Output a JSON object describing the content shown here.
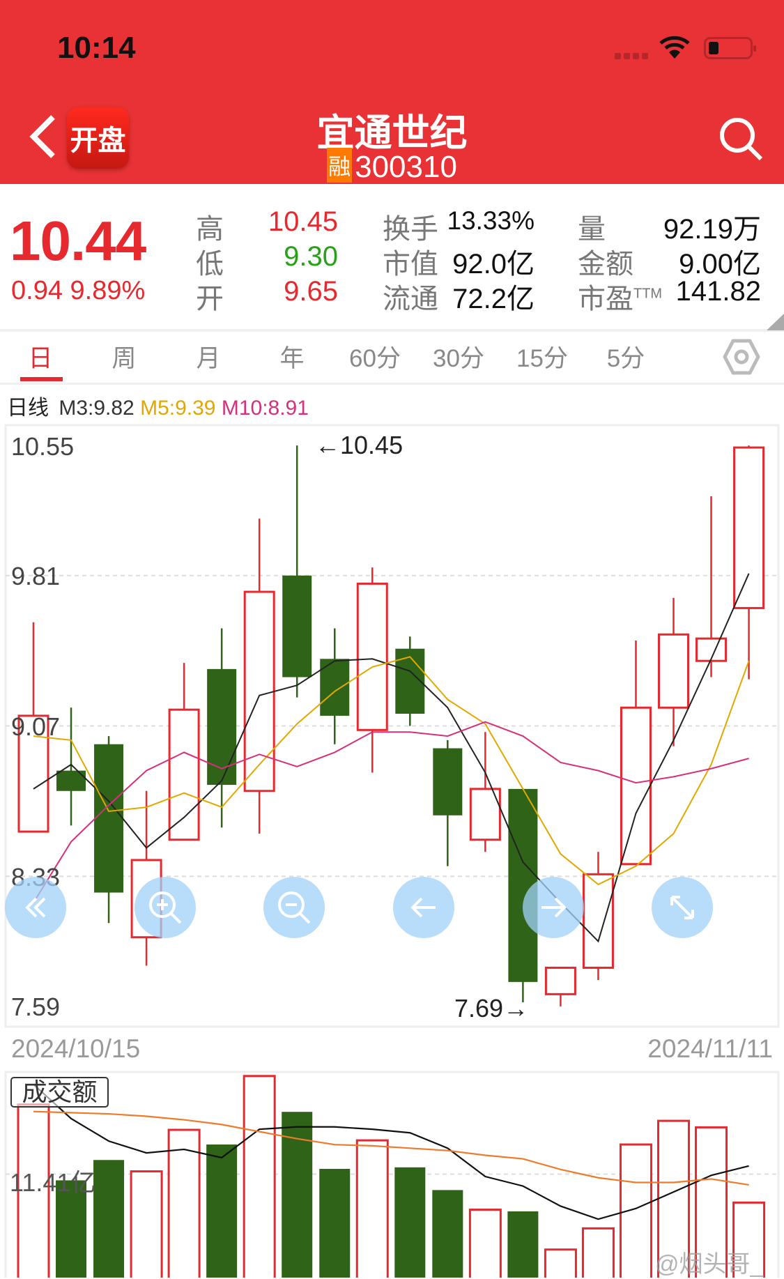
{
  "status_bar": {
    "time": "10:14"
  },
  "header": {
    "back_label": "开盘",
    "title": "宜通世纪",
    "badge": "融",
    "code": "300310"
  },
  "quote": {
    "price": "10.44",
    "change": "0.94",
    "change_pct": "9.89%",
    "high_label": "高",
    "high": "10.45",
    "low_label": "低",
    "low": "9.30",
    "open_label": "开",
    "open": "9.65",
    "turnover_label": "换手",
    "turnover": "13.33%",
    "mcap_label": "市值",
    "mcap": "92.0亿",
    "float_label": "流通",
    "float_cap": "72.2亿",
    "volume_label": "量",
    "volume": "92.19万",
    "amount_label": "金额",
    "amount": "9.00亿",
    "pe_label": "市盈",
    "pe_sup": "TTM",
    "pe": "141.82"
  },
  "tabs": [
    {
      "label": "日",
      "active": true
    },
    {
      "label": "周"
    },
    {
      "label": "月"
    },
    {
      "label": "年"
    },
    {
      "label": "60分"
    },
    {
      "label": "30分"
    },
    {
      "label": "15分"
    },
    {
      "label": "5分"
    }
  ],
  "ma_legend": {
    "period": "日线",
    "m3": "M3:9.82",
    "m5": "M5:9.39",
    "m10": "M10:8.91"
  },
  "colors": {
    "up": "#e5292f",
    "down": "#2f6318",
    "m3": "#222222",
    "m5": "#e0a800",
    "m10": "#d6307a",
    "vol_ma1": "#111111",
    "vol_ma2": "#ee7a2a",
    "header": "#e83235"
  },
  "chart_data": [
    {
      "type": "candlestick",
      "ylim": [
        7.59,
        10.55
      ],
      "y_ticks": [
        "10.55",
        "9.81",
        "9.07",
        "8.33",
        "7.59"
      ],
      "x_start": "2024/10/15",
      "x_end": "2024/11/11",
      "annotations": {
        "high": "←10.45",
        "low": "7.69→"
      },
      "candles": [
        {
          "o": 8.55,
          "c": 9.12,
          "h": 9.58,
          "l": 8.55
        },
        {
          "o": 8.85,
          "c": 8.75,
          "h": 9.16,
          "l": 8.58
        },
        {
          "o": 8.98,
          "c": 8.25,
          "h": 9.02,
          "l": 8.1
        },
        {
          "o": 8.03,
          "c": 8.41,
          "h": 8.75,
          "l": 7.89
        },
        {
          "o": 8.51,
          "c": 9.15,
          "h": 9.38,
          "l": 8.51
        },
        {
          "o": 9.35,
          "c": 8.78,
          "h": 9.55,
          "l": 8.57
        },
        {
          "o": 8.75,
          "c": 9.73,
          "h": 10.09,
          "l": 8.54
        },
        {
          "o": 9.81,
          "c": 9.31,
          "h": 10.45,
          "l": 9.21
        },
        {
          "o": 9.4,
          "c": 9.12,
          "h": 9.55,
          "l": 8.98
        },
        {
          "o": 9.05,
          "c": 9.77,
          "h": 9.85,
          "l": 8.84
        },
        {
          "o": 9.45,
          "c": 9.13,
          "h": 9.51,
          "l": 9.07
        },
        {
          "o": 8.96,
          "c": 8.63,
          "h": 9.0,
          "l": 8.38
        },
        {
          "o": 8.51,
          "c": 8.76,
          "h": 9.04,
          "l": 8.45
        },
        {
          "o": 8.76,
          "c": 7.81,
          "h": 8.76,
          "l": 7.71
        },
        {
          "o": 7.75,
          "c": 7.88,
          "h": 7.88,
          "l": 7.69
        },
        {
          "o": 7.88,
          "c": 8.34,
          "h": 8.45,
          "l": 7.82
        },
        {
          "o": 8.39,
          "c": 9.16,
          "h": 9.49,
          "l": 8.39
        },
        {
          "o": 9.16,
          "c": 9.52,
          "h": 9.7,
          "l": 8.97
        },
        {
          "o": 9.39,
          "c": 9.5,
          "h": 10.2,
          "l": 9.31
        },
        {
          "o": 9.65,
          "c": 10.44,
          "h": 10.45,
          "l": 9.3
        }
      ],
      "ma3": [
        8.76,
        8.88,
        8.7,
        8.47,
        8.62,
        8.8,
        9.22,
        9.27,
        9.39,
        9.4,
        9.34,
        9.16,
        8.84,
        8.4,
        8.2,
        8.01,
        8.64,
        9.0,
        9.4,
        9.82
      ],
      "ma5": [
        9.02,
        9.0,
        8.65,
        8.67,
        8.74,
        8.67,
        8.88,
        9.08,
        9.24,
        9.36,
        9.41,
        9.2,
        9.08,
        8.76,
        8.44,
        8.29,
        8.38,
        8.54,
        8.88,
        9.39
      ],
      "ma10": [
        8.2,
        8.5,
        8.68,
        8.85,
        8.94,
        8.86,
        8.93,
        8.87,
        8.94,
        9.04,
        9.04,
        9.02,
        9.09,
        9.02,
        8.89,
        8.85,
        8.79,
        8.82,
        8.86,
        8.91
      ]
    },
    {
      "type": "bar",
      "label": "成交额",
      "y_tick": "11.41亿",
      "y_tick_value": 11.41,
      "ylim": [
        2.6,
        20.04
      ],
      "values": [
        17.29,
        10.88,
        12.6,
        11.64,
        15.15,
        13.91,
        19.7,
        16.67,
        11.85,
        14.26,
        11.98,
        10.06,
        8.4,
        8.26,
        5.03,
        6.82,
        13.91,
        15.91,
        15.36,
        9.0
      ],
      "ma1": [
        19.0,
        16.1,
        14.2,
        13.2,
        13.5,
        12.8,
        15.2,
        15.4,
        15.4,
        15.2,
        14.9,
        13.6,
        11.2,
        10.4,
        8.7,
        7.6,
        8.5,
        9.9,
        11.3,
        12.1
      ],
      "ma2": [
        16.7,
        16.6,
        16.5,
        16.3,
        16.0,
        15.6,
        15.0,
        14.4,
        13.9,
        13.8,
        13.6,
        13.4,
        13.0,
        12.7,
        11.8,
        11.1,
        10.7,
        10.7,
        11.0,
        10.5
      ]
    }
  ],
  "overlay_buttons": [
    {
      "icon": "double-left-icon"
    },
    {
      "icon": "zoom-in-icon"
    },
    {
      "icon": "zoom-out-icon"
    },
    {
      "icon": "arrow-left-icon"
    },
    {
      "icon": "arrow-right-icon"
    },
    {
      "icon": "expand-icon"
    }
  ],
  "watermark": "@烟头哥_"
}
